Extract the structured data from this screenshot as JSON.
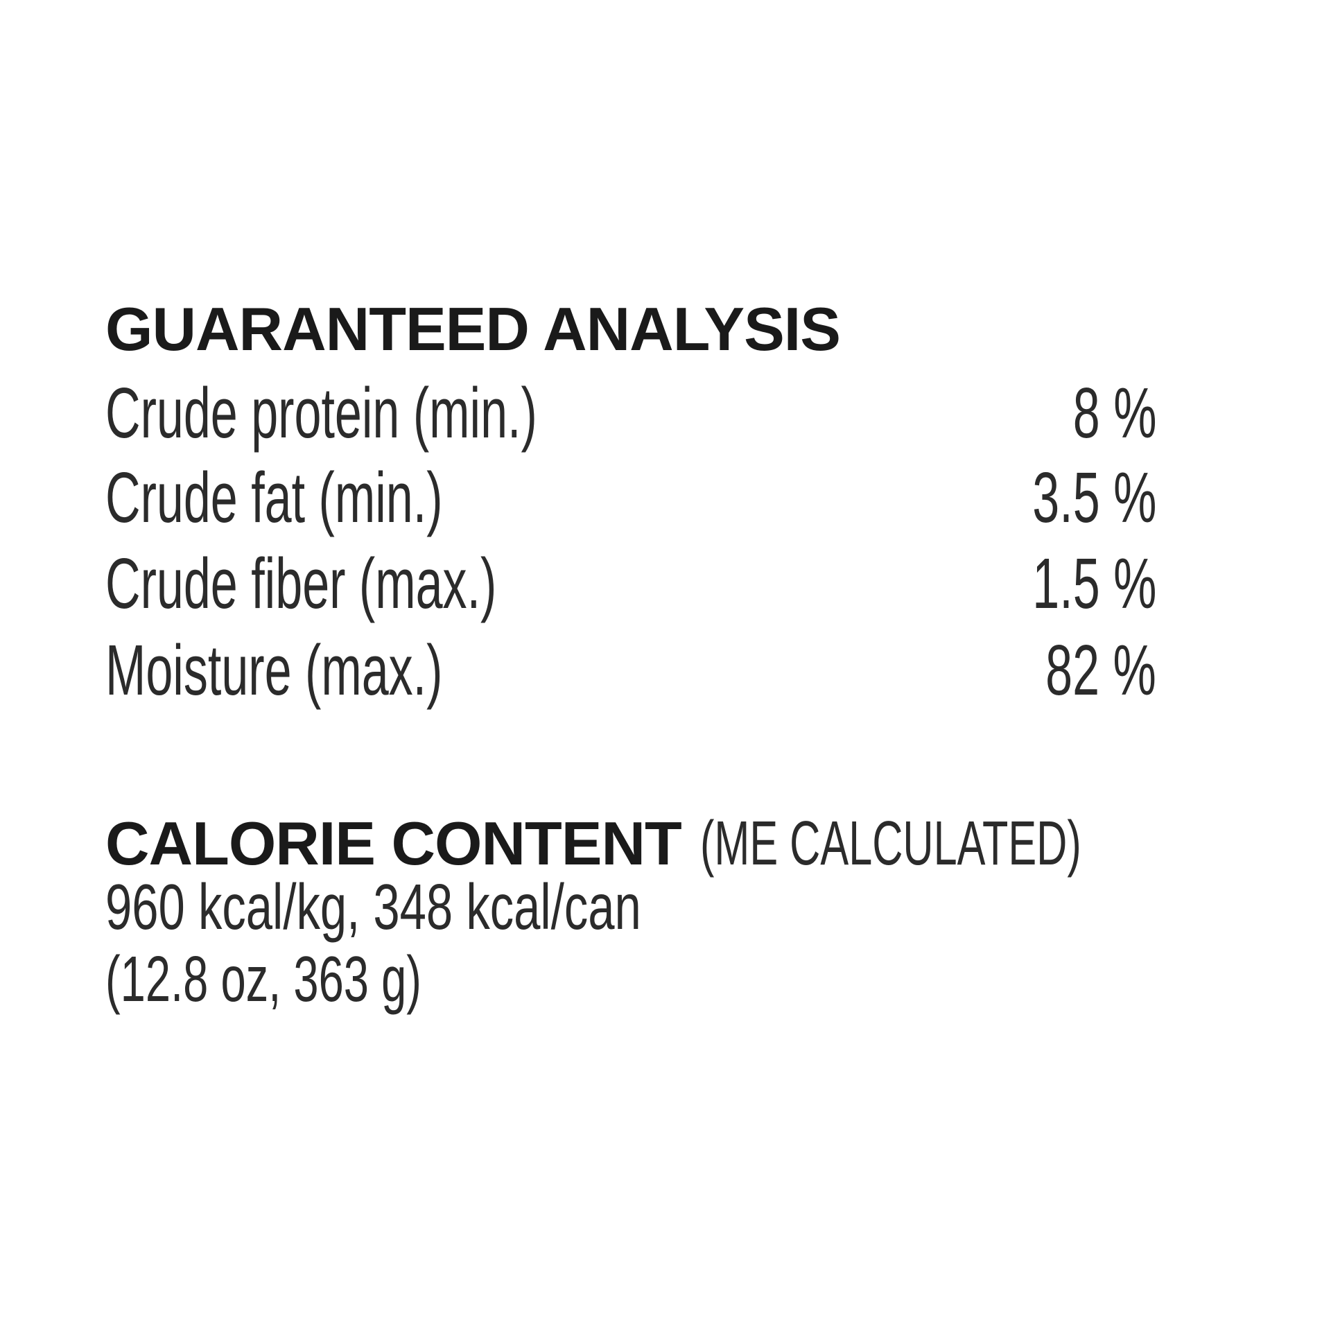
{
  "guaranteed_analysis": {
    "title": "GUARANTEED ANALYSIS",
    "rows": [
      {
        "label": "Crude protein (min.)",
        "value": "8 %"
      },
      {
        "label": "Crude fat (min.)",
        "value": "3.5 %"
      },
      {
        "label": "Crude fiber (max.)",
        "value": "1.5 %"
      },
      {
        "label": "Moisture (max.)",
        "value": "82 %"
      }
    ]
  },
  "calorie_content": {
    "title": "CALORIE CONTENT",
    "subtitle": "(ME CALCULATED)",
    "line1": "960 kcal/kg, 348 kcal/can",
    "line2": "(12.8 oz, 363 g)"
  }
}
